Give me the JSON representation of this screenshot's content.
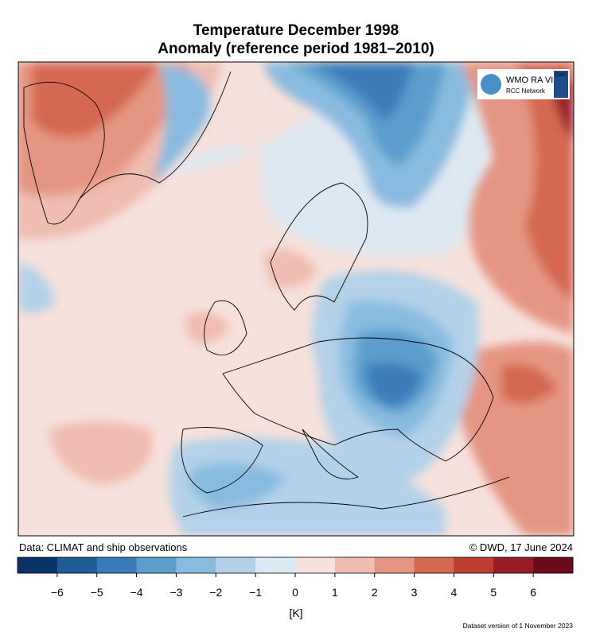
{
  "map": {
    "title": [
      "Temperature December 1998",
      "Anomaly (reference period 1981–2010)"
    ],
    "logo": {
      "wmo": "WMO RA VI",
      "network": "RCC Network",
      "dwd": "DWD"
    },
    "source": "Data: CLIMAT and ship observations",
    "credit": "© DWD, 17 June 2024",
    "version": "Dataset version of 1 November 2023",
    "colorbar": {
      "unit": "[K]",
      "lim": [
        -7,
        7
      ],
      "ticks": [
        {
          "value": -6,
          "label": "−6"
        },
        {
          "value": -5,
          "label": "−5"
        },
        {
          "value": -4,
          "label": "−4"
        },
        {
          "value": -3,
          "label": "−3"
        },
        {
          "value": -2,
          "label": "−2"
        },
        {
          "value": -1,
          "label": "−1"
        },
        0,
        1,
        2,
        3,
        4,
        5,
        6
      ],
      "colors": [
        "#0a3466",
        "#1f5c98",
        "#3a7bb9",
        "#5c9dcd",
        "#89bbde",
        "#b3d2e9",
        "#dde9f2",
        "#f7e1dc",
        "#efbdb1",
        "#e59682",
        "#d66852",
        "#bf3c32",
        "#981c26",
        "#6a0a1a"
      ]
    }
  }
}
